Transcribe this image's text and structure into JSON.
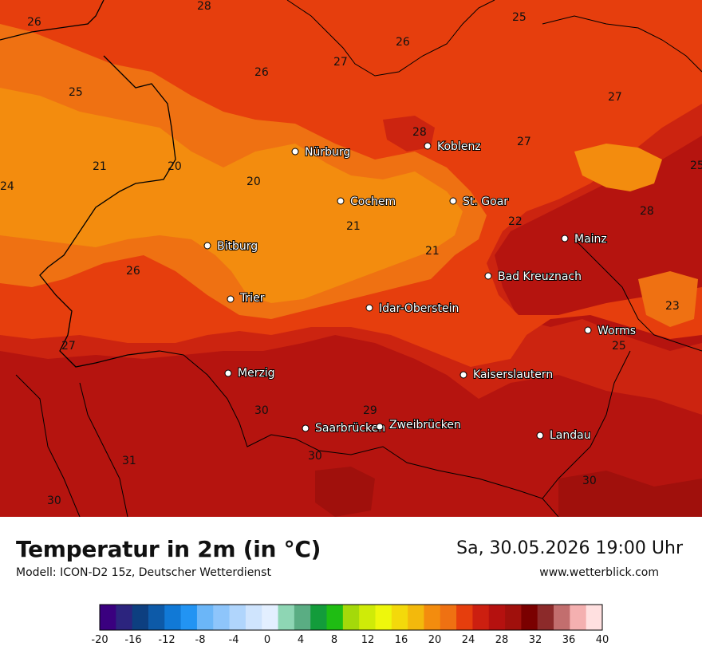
{
  "map": {
    "cities": [
      {
        "name": "Nürburg"
      },
      {
        "name": "Koblenz"
      },
      {
        "name": "Cochem"
      },
      {
        "name": "St. Goar"
      },
      {
        "name": "Mainz"
      },
      {
        "name": "Bitburg"
      },
      {
        "name": "Bad Kreuznach"
      },
      {
        "name": "Trier"
      },
      {
        "name": "Idar-Oberstein"
      },
      {
        "name": "Worms"
      },
      {
        "name": "Merzig"
      },
      {
        "name": "Kaiserslautern"
      },
      {
        "name": "Saarbrücken"
      },
      {
        "name": "Zweibrücken"
      },
      {
        "name": "Landau"
      }
    ],
    "contour_labels": [
      "28",
      "26",
      "25",
      "26",
      "27",
      "26",
      "25",
      "28",
      "27",
      "27",
      "24",
      "21",
      "20",
      "20",
      "21",
      "21",
      "22",
      "28",
      "25",
      "26",
      "23",
      "27",
      "25",
      "30",
      "29",
      "30",
      "31",
      "30",
      "30"
    ]
  },
  "footer": {
    "title": "Temperatur in 2m (in °C)",
    "model": "Modell: ICON-D2 15z, Deutscher Wetterdienst",
    "datetime": "Sa, 30.05.2026 19:00 Uhr",
    "website": "www.wetterblick.com"
  },
  "legend": {
    "colors": [
      "#3a007f",
      "#2c247e",
      "#0d3f80",
      "#0d5aa8",
      "#1179d6",
      "#2294f3",
      "#6bb6f8",
      "#8ec5fb",
      "#b0d5fc",
      "#cfe4fd",
      "#e3efff",
      "#8ed6b4",
      "#5aad83",
      "#139c3b",
      "#1fbd13",
      "#a4d90a",
      "#cfeb08",
      "#eef70c",
      "#f3d90b",
      "#f3b90c",
      "#f38c0e",
      "#ef7112",
      "#e63e0d",
      "#cc1f10",
      "#b5110f",
      "#a0100c",
      "#7a0000",
      "#8c2a2a",
      "#c26e6e",
      "#f4b0b0",
      "#ffe0e0"
    ],
    "ticks": [
      "-20",
      "-16",
      "-12",
      "-8",
      "-4",
      "0",
      "4",
      "8",
      "12",
      "16",
      "20",
      "24",
      "28",
      "32",
      "36",
      "40"
    ]
  }
}
